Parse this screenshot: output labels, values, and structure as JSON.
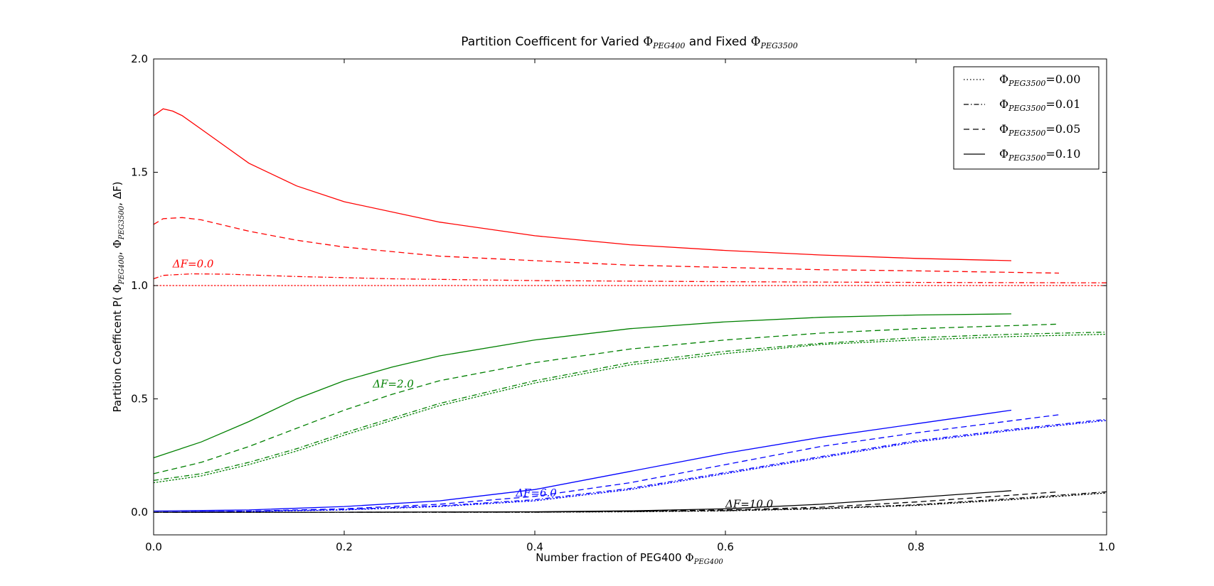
{
  "chart_data": {
    "type": "line",
    "title": {
      "prefix": "Partition Coefficent for Varied ",
      "sym1": "Φ",
      "sub1": "PEG400",
      "mid": " and Fixed ",
      "sym2": "Φ",
      "sub2": "PEG3500"
    },
    "xlabel": {
      "text": "Number fraction of PEG400 ",
      "sym": "Φ",
      "sub": "PEG400"
    },
    "ylabel": {
      "prefix": "Partition Coefficent  P( ",
      "sym1": "Φ",
      "sub1": "PEG400",
      "sep1": ",  ",
      "sym2": "Φ",
      "sub2": "PEG3500",
      "sep2": ",  ΔF)"
    },
    "xlim": [
      0.0,
      1.0
    ],
    "ylim": [
      -0.1,
      2.0
    ],
    "xticks": [
      0.0,
      0.2,
      0.4,
      0.6,
      0.8,
      1.0
    ],
    "xtick_labels": [
      "0.0",
      "0.2",
      "0.4",
      "0.6",
      "0.8",
      "1.0"
    ],
    "yticks": [
      0.0,
      0.5,
      1.0,
      1.5,
      2.0
    ],
    "ytick_labels": [
      "0.0",
      "0.5",
      "1.0",
      "1.5",
      "2.0"
    ],
    "grid": false,
    "legend": {
      "position": "top-right",
      "entries": [
        {
          "sym": "Φ",
          "sub": "PEG3500",
          "value": "=0.00",
          "style": "dotted"
        },
        {
          "sym": "Φ",
          "sub": "PEG3500",
          "value": "=0.01",
          "style": "dashdot"
        },
        {
          "sym": "Φ",
          "sub": "PEG3500",
          "value": "=0.05",
          "style": "dashed"
        },
        {
          "sym": "Φ",
          "sub": "PEG3500",
          "value": "=0.10",
          "style": "solid"
        }
      ]
    },
    "groups": [
      {
        "label": "ΔF=0.0",
        "label_x": 0.02,
        "label_y": 1.08,
        "color": "#ff0000"
      },
      {
        "label": "ΔF=2.0",
        "label_x": 0.23,
        "label_y": 0.55,
        "color": "#008000"
      },
      {
        "label": "ΔF=6.0",
        "label_x": 0.38,
        "label_y": 0.07,
        "color": "#0000ff"
      },
      {
        "label": "ΔF=10.0",
        "label_x": 0.6,
        "label_y": 0.02,
        "color": "#000000"
      }
    ],
    "series": [
      {
        "group": 0,
        "style": "dotted",
        "x": [
          0.0,
          0.2,
          0.4,
          0.6,
          0.8,
          1.0
        ],
        "y": [
          1.0,
          1.0,
          1.0,
          1.0,
          1.0,
          1.0
        ]
      },
      {
        "group": 0,
        "style": "dashdot",
        "x": [
          0.0,
          0.01,
          0.04,
          0.08,
          0.15,
          0.25,
          0.4,
          0.6,
          0.8,
          1.0
        ],
        "y": [
          1.03,
          1.045,
          1.052,
          1.05,
          1.04,
          1.03,
          1.022,
          1.017,
          1.014,
          1.012
        ]
      },
      {
        "group": 0,
        "style": "dashed",
        "x": [
          0.0,
          0.01,
          0.03,
          0.05,
          0.1,
          0.15,
          0.2,
          0.3,
          0.4,
          0.5,
          0.6,
          0.7,
          0.8,
          0.95
        ],
        "y": [
          1.27,
          1.295,
          1.3,
          1.29,
          1.24,
          1.2,
          1.17,
          1.13,
          1.11,
          1.09,
          1.08,
          1.07,
          1.065,
          1.055
        ]
      },
      {
        "group": 0,
        "style": "solid",
        "x": [
          0.0,
          0.01,
          0.02,
          0.03,
          0.05,
          0.08,
          0.1,
          0.15,
          0.2,
          0.3,
          0.4,
          0.5,
          0.6,
          0.7,
          0.8,
          0.9
        ],
        "y": [
          1.75,
          1.78,
          1.77,
          1.75,
          1.69,
          1.6,
          1.54,
          1.44,
          1.37,
          1.28,
          1.22,
          1.18,
          1.155,
          1.135,
          1.12,
          1.11
        ]
      },
      {
        "group": 1,
        "style": "dotted",
        "x": [
          0.0,
          0.05,
          0.1,
          0.15,
          0.2,
          0.3,
          0.4,
          0.5,
          0.6,
          0.7,
          0.8,
          0.9,
          1.0
        ],
        "y": [
          0.13,
          0.16,
          0.21,
          0.27,
          0.34,
          0.47,
          0.57,
          0.65,
          0.7,
          0.74,
          0.76,
          0.775,
          0.785
        ]
      },
      {
        "group": 1,
        "style": "dashdot",
        "x": [
          0.0,
          0.05,
          0.1,
          0.15,
          0.2,
          0.3,
          0.4,
          0.5,
          0.6,
          0.7,
          0.8,
          0.9,
          1.0
        ],
        "y": [
          0.14,
          0.17,
          0.22,
          0.28,
          0.35,
          0.48,
          0.58,
          0.66,
          0.71,
          0.745,
          0.77,
          0.785,
          0.795
        ]
      },
      {
        "group": 1,
        "style": "dashed",
        "x": [
          0.0,
          0.05,
          0.1,
          0.15,
          0.2,
          0.25,
          0.3,
          0.4,
          0.5,
          0.6,
          0.7,
          0.8,
          0.95
        ],
        "y": [
          0.17,
          0.22,
          0.29,
          0.37,
          0.45,
          0.52,
          0.58,
          0.66,
          0.72,
          0.76,
          0.79,
          0.81,
          0.83
        ]
      },
      {
        "group": 1,
        "style": "solid",
        "x": [
          0.0,
          0.05,
          0.1,
          0.15,
          0.2,
          0.25,
          0.3,
          0.4,
          0.5,
          0.6,
          0.7,
          0.8,
          0.9
        ],
        "y": [
          0.24,
          0.31,
          0.4,
          0.5,
          0.58,
          0.64,
          0.69,
          0.76,
          0.81,
          0.84,
          0.86,
          0.87,
          0.875
        ]
      },
      {
        "group": 2,
        "style": "dotted",
        "x": [
          0.0,
          0.1,
          0.2,
          0.3,
          0.4,
          0.5,
          0.6,
          0.7,
          0.8,
          0.9,
          1.0
        ],
        "y": [
          0.0,
          0.003,
          0.01,
          0.025,
          0.05,
          0.1,
          0.17,
          0.24,
          0.31,
          0.36,
          0.405
        ]
      },
      {
        "group": 2,
        "style": "dashdot",
        "x": [
          0.0,
          0.1,
          0.2,
          0.3,
          0.4,
          0.5,
          0.6,
          0.7,
          0.8,
          0.9,
          1.0
        ],
        "y": [
          0.0,
          0.004,
          0.012,
          0.028,
          0.055,
          0.105,
          0.175,
          0.245,
          0.315,
          0.365,
          0.41
        ]
      },
      {
        "group": 2,
        "style": "dashed",
        "x": [
          0.0,
          0.1,
          0.2,
          0.3,
          0.4,
          0.5,
          0.6,
          0.7,
          0.8,
          0.95
        ],
        "y": [
          0.0,
          0.005,
          0.015,
          0.035,
          0.07,
          0.13,
          0.21,
          0.29,
          0.35,
          0.43
        ]
      },
      {
        "group": 2,
        "style": "solid",
        "x": [
          0.0,
          0.1,
          0.2,
          0.3,
          0.4,
          0.5,
          0.6,
          0.7,
          0.8,
          0.9
        ],
        "y": [
          0.005,
          0.01,
          0.025,
          0.05,
          0.1,
          0.18,
          0.26,
          0.33,
          0.39,
          0.45
        ]
      },
      {
        "group": 3,
        "style": "dotted",
        "x": [
          0.0,
          0.2,
          0.4,
          0.5,
          0.6,
          0.7,
          0.8,
          0.9,
          1.0
        ],
        "y": [
          0.0,
          0.0,
          0.0,
          0.002,
          0.006,
          0.015,
          0.03,
          0.055,
          0.085
        ]
      },
      {
        "group": 3,
        "style": "dashdot",
        "x": [
          0.0,
          0.2,
          0.4,
          0.5,
          0.6,
          0.7,
          0.8,
          0.9,
          1.0
        ],
        "y": [
          0.0,
          0.0,
          0.0,
          0.003,
          0.007,
          0.017,
          0.033,
          0.06,
          0.09
        ]
      },
      {
        "group": 3,
        "style": "dashed",
        "x": [
          0.0,
          0.2,
          0.4,
          0.5,
          0.6,
          0.7,
          0.8,
          0.95
        ],
        "y": [
          0.0,
          0.0,
          0.001,
          0.004,
          0.01,
          0.022,
          0.045,
          0.09
        ]
      },
      {
        "group": 3,
        "style": "solid",
        "x": [
          0.0,
          0.2,
          0.4,
          0.5,
          0.6,
          0.7,
          0.8,
          0.9
        ],
        "y": [
          0.0,
          0.0,
          0.002,
          0.006,
          0.015,
          0.035,
          0.065,
          0.095
        ]
      }
    ]
  }
}
